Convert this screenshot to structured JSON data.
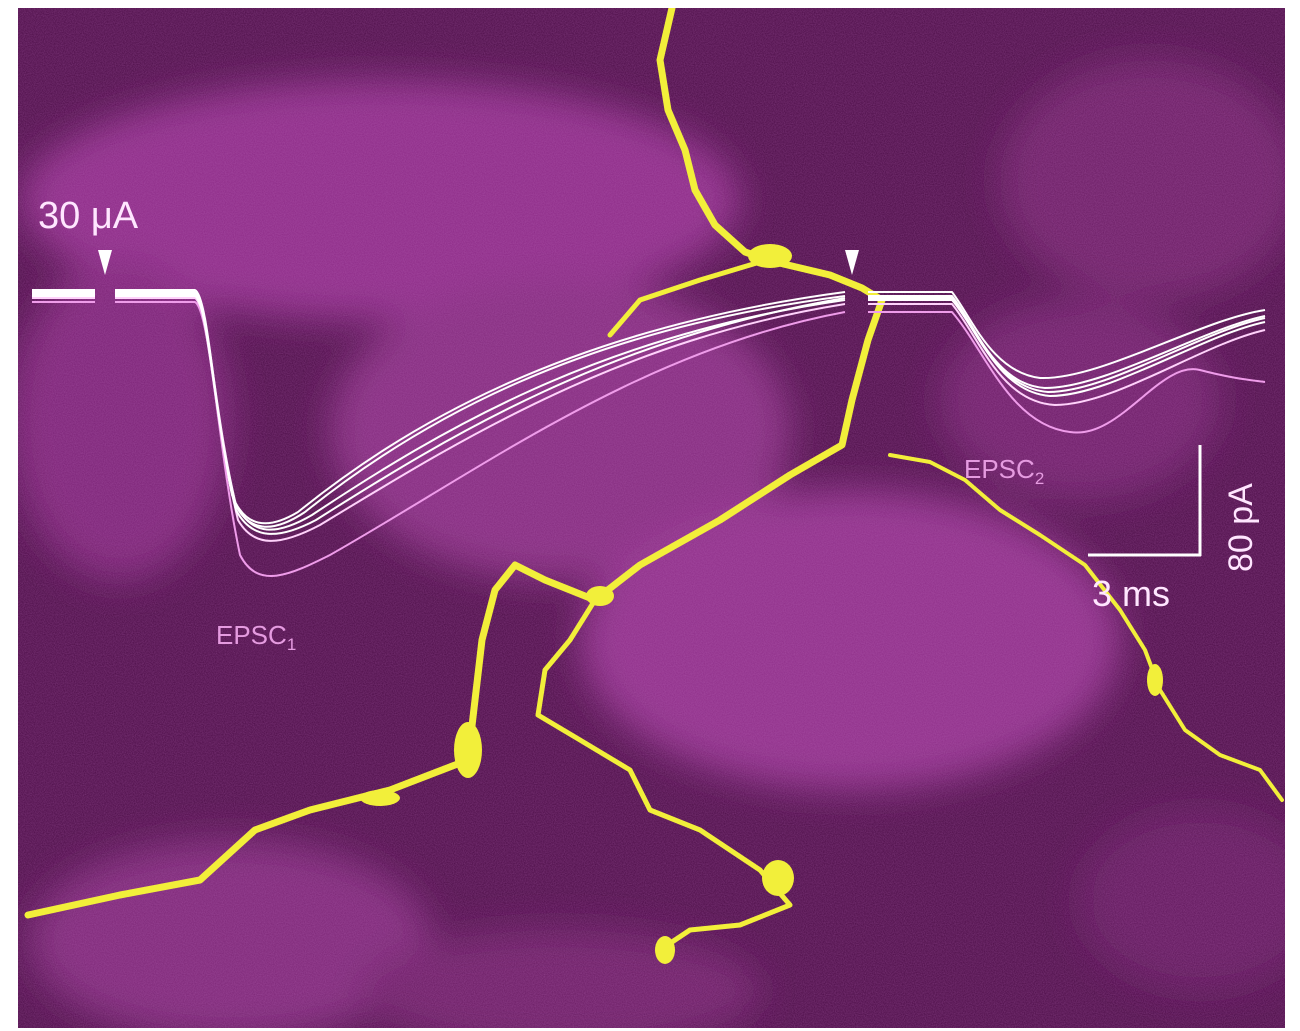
{
  "annotations": {
    "stimulus": "30 μA",
    "epsc1": {
      "label": "EPSC",
      "subscript": "1"
    },
    "epsc2": {
      "label": "EPSC",
      "subscript": "2"
    },
    "scale_current": "80 pA",
    "scale_time": "3 ms"
  }
}
